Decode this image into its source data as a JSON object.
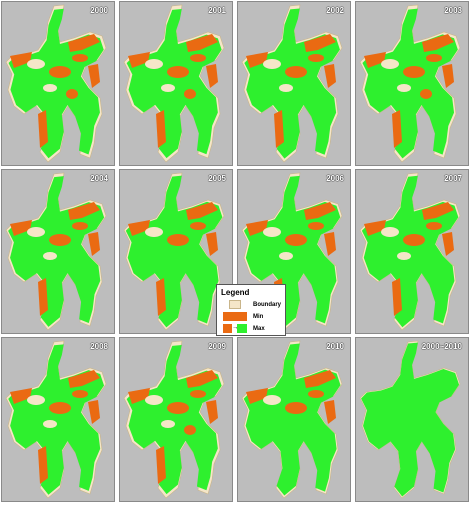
{
  "panels": [
    {
      "label": "2000",
      "extent": 0.72
    },
    {
      "label": "2001",
      "extent": 0.7
    },
    {
      "label": "2002",
      "extent": 0.76
    },
    {
      "label": "2003",
      "extent": 0.74
    },
    {
      "label": "2004",
      "extent": 0.8
    },
    {
      "label": "2005",
      "extent": 0.86
    },
    {
      "label": "2006",
      "extent": 0.84
    },
    {
      "label": "2007",
      "extent": 0.85
    },
    {
      "label": "2008",
      "extent": 0.78
    },
    {
      "label": "2009",
      "extent": 0.7
    },
    {
      "label": "2010",
      "extent": 0.88
    },
    {
      "label": "2000~2010",
      "extent": 1.0
    }
  ],
  "legend": {
    "title": "Legend",
    "boundary": "Boundary",
    "min": "Min",
    "max": "Max"
  },
  "colors": {
    "background": "#bdbdbd",
    "boundary": "#f5e6c8",
    "min": "#ea6a12",
    "max": "#2ef02e"
  }
}
